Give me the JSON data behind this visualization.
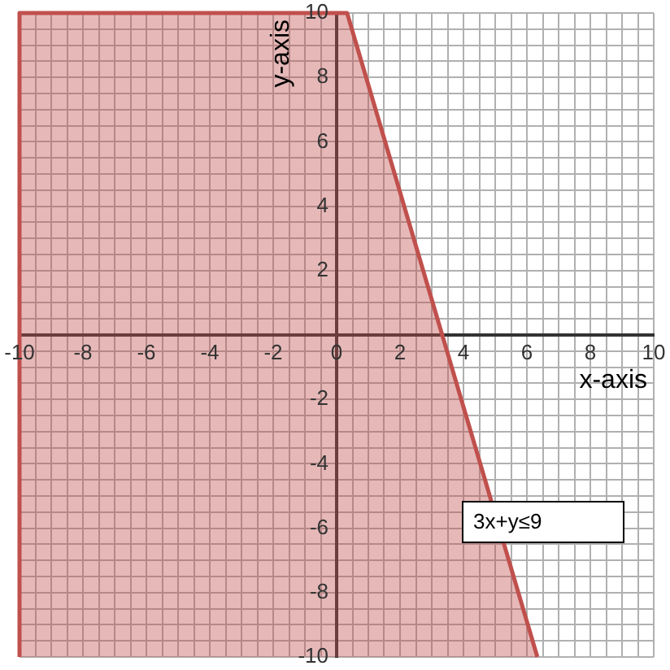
{
  "chart_data": {
    "type": "area",
    "xlabel": "x-axis",
    "ylabel": "y-axis",
    "x": [
      -10,
      -10,
      0.33,
      6.33
    ],
    "series": [
      {
        "color": "#c0504d",
        "values": [
          -10,
          10,
          10,
          -10
        ]
      }
    ],
    "xlim": [
      -10,
      10
    ],
    "ylim": [
      -10,
      10
    ],
    "xticks": [
      -10,
      {
        "value": -9.5,
        "label": null
      },
      {
        "value": -9,
        "label": null
      },
      {
        "value": -8.5,
        "label": null
      },
      -8,
      {
        "value": -7.5,
        "label": null
      },
      {
        "value": -7,
        "label": null
      },
      {
        "value": -6.5,
        "label": null
      },
      -6,
      {
        "value": -5.5,
        "label": null
      },
      {
        "value": -5,
        "label": null
      },
      {
        "value": -4.5,
        "label": null
      },
      -4,
      {
        "value": -3.5,
        "label": null
      },
      {
        "value": -3,
        "label": null
      },
      {
        "value": -2.5,
        "label": null
      },
      -2,
      {
        "value": -1.5,
        "label": null
      },
      {
        "value": -1,
        "label": null
      },
      {
        "value": -0.5,
        "label": null
      },
      0,
      {
        "value": 0.5,
        "label": null
      },
      {
        "value": 1,
        "label": null
      },
      {
        "value": 1.5,
        "label": null
      },
      2,
      {
        "value": 2.5,
        "label": null
      },
      {
        "value": 3,
        "label": null
      },
      {
        "value": 3.5,
        "label": null
      },
      4,
      {
        "value": 4.5,
        "label": null
      },
      {
        "value": 5,
        "label": null
      },
      {
        "value": 5.5,
        "label": null
      },
      6,
      {
        "value": 6.5,
        "label": null
      },
      {
        "value": 7,
        "label": null
      },
      {
        "value": 7.5,
        "label": null
      },
      8,
      {
        "value": 8.5,
        "label": null
      },
      {
        "value": 9,
        "label": null
      },
      {
        "value": 9.5,
        "label": null
      },
      10
    ],
    "yticks": [
      -10,
      {
        "value": -9.5,
        "label": null
      },
      {
        "value": -9,
        "label": null
      },
      {
        "value": -8.5,
        "label": null
      },
      -8,
      {
        "value": -7.5,
        "label": null
      },
      {
        "value": -7,
        "label": null
      },
      {
        "value": -6.5,
        "label": null
      },
      -6,
      {
        "value": -5.5,
        "label": null
      },
      {
        "value": -5,
        "label": null
      },
      {
        "value": -4.5,
        "label": null
      },
      -4,
      {
        "value": -3.5,
        "label": null
      },
      {
        "value": -3,
        "label": null
      },
      {
        "value": -2.5,
        "label": null
      },
      -2,
      {
        "value": -1.5,
        "label": null
      },
      {
        "value": -1,
        "label": null
      },
      {
        "value": -0.5,
        "label": null
      },
      {
        "value": 0,
        "label": null
      },
      {
        "value": 0.5,
        "label": null
      },
      {
        "value": 1,
        "label": null
      },
      {
        "value": 1.5,
        "label": null
      },
      2,
      {
        "value": 2.5,
        "label": null
      },
      {
        "value": 3,
        "label": null
      },
      {
        "value": 3.5,
        "label": null
      },
      4,
      {
        "value": 4.5,
        "label": null
      },
      {
        "value": 5,
        "label": null
      },
      {
        "value": 5.5,
        "label": null
      },
      6,
      {
        "value": 6.5,
        "label": null
      },
      {
        "value": 7,
        "label": null
      },
      {
        "value": 7.5,
        "label": null
      },
      8,
      {
        "value": 8.5,
        "label": null
      },
      {
        "value": 9,
        "label": null
      },
      {
        "value": 9.5,
        "label": null
      },
      10
    ],
    "grid": true,
    "legend": false,
    "marker": "none",
    "line_style": "solid",
    "annotations": [
      "3x+y≤9"
    ]
  }
}
